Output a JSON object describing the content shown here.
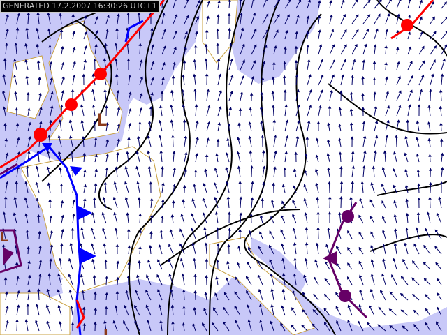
{
  "header": {
    "timestamp": "GENERATED 17.2.2007 16:30:26 UTC+1"
  },
  "map": {
    "type": "surface pressure and wind analysis",
    "region": "Europe",
    "pressure_labels": [
      {
        "id": "low-uk",
        "text": "L"
      },
      {
        "id": "low-west",
        "text": "L"
      },
      {
        "id": "low-south",
        "text": "L"
      }
    ],
    "colors": {
      "sea": "#c8c8f8",
      "land": "#ffffff",
      "borders": "#c8a040",
      "isobars": "#000000",
      "warm_front": "#ff0000",
      "cold_front": "#0000ff",
      "occluded_front": "#660066",
      "wind_arrows": "#000066",
      "low_label": "#8b3a1a"
    },
    "fronts": [
      "warm front",
      "cold front",
      "occluded front"
    ]
  }
}
